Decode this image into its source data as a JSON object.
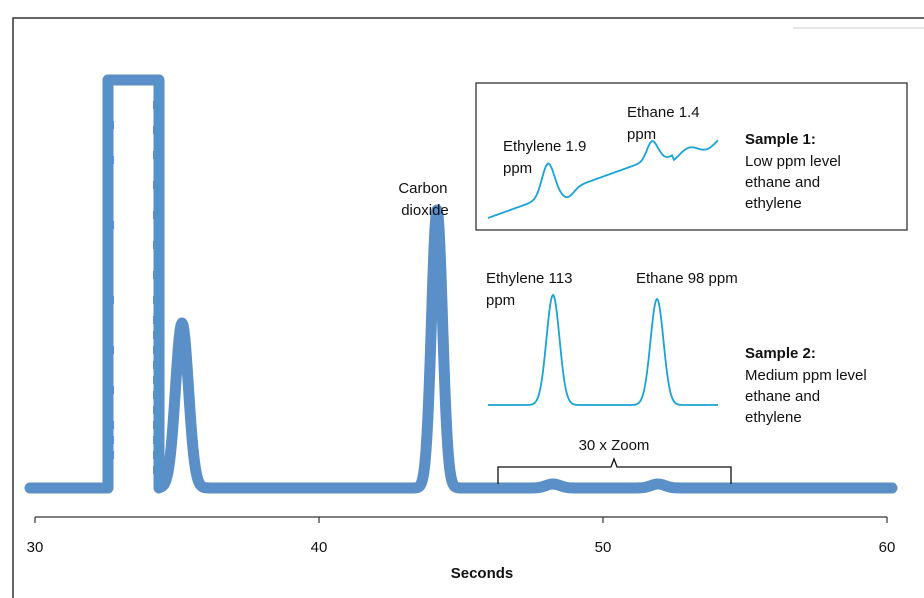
{
  "chart_data": {
    "type": "line",
    "xlabel": "Seconds",
    "xlim": [
      30,
      60
    ],
    "x_ticks": [
      30,
      40,
      50,
      60
    ],
    "x_tick_labels": [
      "30",
      "40",
      "50",
      "60"
    ],
    "main_trace": {
      "color": "#5b8fc7",
      "peaks": [
        {
          "center": 33.5,
          "label": "",
          "note": "saturated"
        },
        {
          "center": 35.3,
          "label": ""
        },
        {
          "center": 44.2,
          "label": "Carbon dioxide"
        },
        {
          "center": 48.2,
          "label": ""
        },
        {
          "center": 51.9,
          "label": ""
        }
      ]
    },
    "annotations": {
      "co2_label": [
        "Carbon",
        "dioxide"
      ],
      "zoom_label": "30 x Zoom",
      "zoom_range": [
        46.3,
        54.5
      ]
    },
    "inset1": {
      "color": "#1aa3d6",
      "peak1_label": [
        "Ethylene 1.9",
        "ppm"
      ],
      "peak2_label": [
        "Ethane 1.4",
        "ppm"
      ],
      "sample_title": "Sample 1:",
      "sample_desc": [
        "Low ppm level",
        "ethane and",
        "ethylene"
      ]
    },
    "inset2": {
      "color": "#1aa3d6",
      "peak1_label": [
        "Ethylene 113",
        "ppm"
      ],
      "peak2_label": "Ethane 98 ppm",
      "sample_title": "Sample 2:",
      "sample_desc": [
        "Medium ppm level",
        "ethane and",
        "ethylene"
      ]
    }
  }
}
